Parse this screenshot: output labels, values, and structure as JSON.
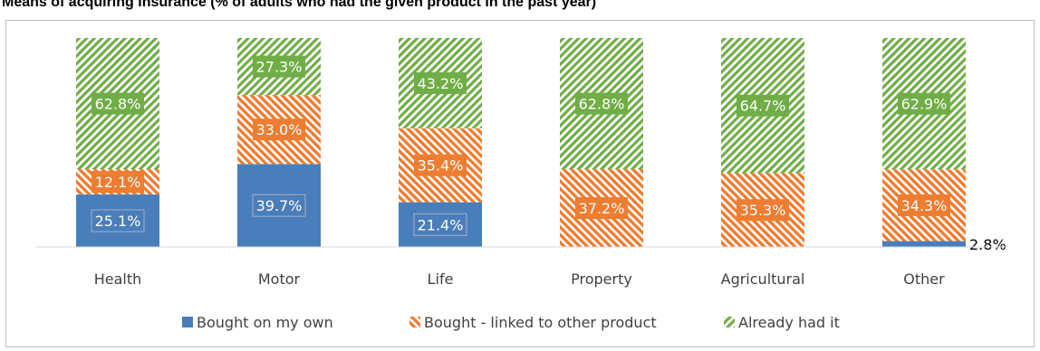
{
  "chart_data": {
    "type": "bar",
    "stacked": true,
    "title": "Means of acquiring insurance (% of adults who had the given product in the past year)",
    "categories": [
      "Health",
      "Motor",
      "Life",
      "Property",
      "Agricultural",
      "Other"
    ],
    "series": [
      {
        "name": "Bought on my own",
        "values": [
          25.1,
          39.7,
          21.4,
          0,
          0,
          2.8
        ],
        "labels": [
          "25.1%",
          "39.7%",
          "21.4%",
          "",
          "",
          "2.8%"
        ],
        "color": "#4a7ebb",
        "pattern": "solid"
      },
      {
        "name": "Bought - linked to other product",
        "values": [
          12.1,
          33.0,
          35.4,
          37.2,
          35.3,
          34.3
        ],
        "labels": [
          "12.1%",
          "33.0%",
          "35.4%",
          "37.2%",
          "35.3%",
          "34.3%"
        ],
        "color": "#ed7d31",
        "pattern": "diagonal-hatch"
      },
      {
        "name": "Already had it",
        "values": [
          62.8,
          27.3,
          43.2,
          62.8,
          64.7,
          62.9
        ],
        "labels": [
          "62.8%",
          "27.3%",
          "43.2%",
          "62.8%",
          "64.7%",
          "62.9%"
        ],
        "color": "#70ad47",
        "pattern": "diagonal-hatch"
      }
    ],
    "ylim": [
      0,
      100
    ],
    "grid": false,
    "legend": "bottom",
    "xlabel": "",
    "ylabel": ""
  }
}
